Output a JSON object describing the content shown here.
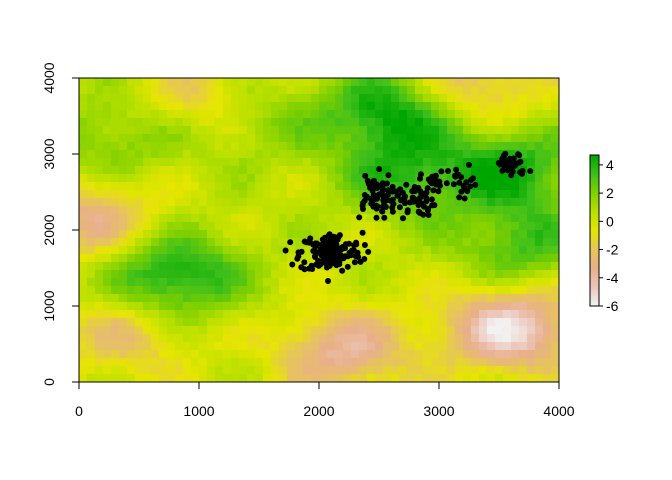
{
  "chart_data": {
    "type": "heatmap",
    "title": "",
    "xlabel": "",
    "ylabel": "",
    "xlim": [
      0,
      4000
    ],
    "ylim": [
      0,
      4000
    ],
    "x_ticks": [
      0,
      1000,
      2000,
      3000,
      4000
    ],
    "y_ticks": [
      0,
      1000,
      2000,
      3000,
      4000
    ],
    "x_tick_labels": [
      "0",
      "1000",
      "2000",
      "3000",
      "4000"
    ],
    "y_tick_labels": [
      "0",
      "1000",
      "2000",
      "3000",
      "4000"
    ],
    "raster": {
      "description_values_range": [
        -6,
        4.7
      ],
      "palette": [
        "#f2f2f2",
        "#ecc5b8",
        "#e8b089",
        "#e6c55a",
        "#e6e600",
        "#b8e000",
        "#7fd000",
        "#3dbf1a",
        "#00a600"
      ],
      "hotspots": [
        {
          "x": 800,
          "y": 1400,
          "value": 4.5
        },
        {
          "x": 1400,
          "y": 3500,
          "value": 2.5
        },
        {
          "x": 2600,
          "y": 3550,
          "value": 4.5
        },
        {
          "x": 2700,
          "y": 2700,
          "value": 3.0
        },
        {
          "x": 3600,
          "y": 2800,
          "value": 4.0
        },
        {
          "x": 3700,
          "y": 1800,
          "value": 3.0
        },
        {
          "x": 300,
          "y": 3200,
          "value": 2.0
        },
        {
          "x": 3600,
          "y": 700,
          "value": -5.8
        },
        {
          "x": 2200,
          "y": 400,
          "value": -4.0
        },
        {
          "x": 100,
          "y": 2150,
          "value": -3.5
        },
        {
          "x": 1100,
          "y": 3700,
          "value": -3.0
        },
        {
          "x": 3300,
          "y": 3900,
          "value": -3.0
        },
        {
          "x": 400,
          "y": 600,
          "value": -2.5
        }
      ]
    },
    "colorbar": {
      "min": -6,
      "max": 4.7,
      "ticks": [
        4,
        2,
        0,
        -2,
        -4,
        -6
      ],
      "tick_labels": [
        "4",
        "2",
        "0",
        "-2",
        "-4",
        "-6"
      ]
    },
    "points": {
      "color": "#000000",
      "clusters": [
        {
          "cx": 2100,
          "cy": 1700,
          "sx": 130,
          "sy": 130,
          "n": 150
        },
        {
          "cx": 2450,
          "cy": 2450,
          "sx": 80,
          "sy": 150,
          "n": 55
        },
        {
          "cx": 2750,
          "cy": 2400,
          "sx": 110,
          "sy": 110,
          "n": 60
        },
        {
          "cx": 2950,
          "cy": 2650,
          "sx": 50,
          "sy": 60,
          "n": 18
        },
        {
          "cx": 3200,
          "cy": 2600,
          "sx": 60,
          "sy": 120,
          "n": 22
        },
        {
          "cx": 3600,
          "cy": 2850,
          "sx": 70,
          "sy": 80,
          "n": 40
        }
      ]
    }
  }
}
